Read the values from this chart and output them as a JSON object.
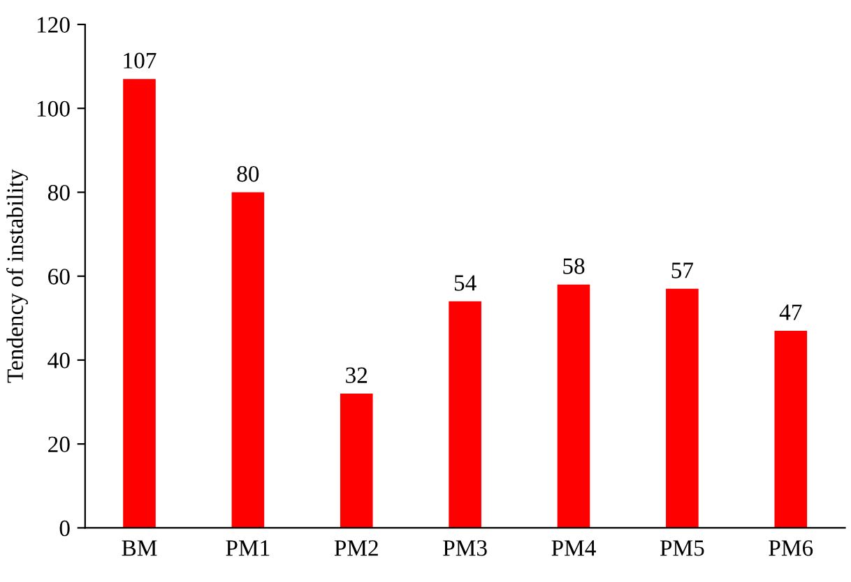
{
  "chart_data": {
    "type": "bar",
    "ylabel": "Tendency of instability",
    "categories": [
      "BM",
      "PM1",
      "PM2",
      "PM3",
      "PM4",
      "PM5",
      "PM6"
    ],
    "values": [
      107,
      80,
      32,
      54,
      58,
      57,
      47
    ],
    "color": "#ff0000",
    "ylim": [
      0,
      120
    ],
    "yticks": [
      0,
      20,
      40,
      60,
      80,
      100,
      120
    ],
    "grid": false,
    "legend": false,
    "data_labels": true
  }
}
